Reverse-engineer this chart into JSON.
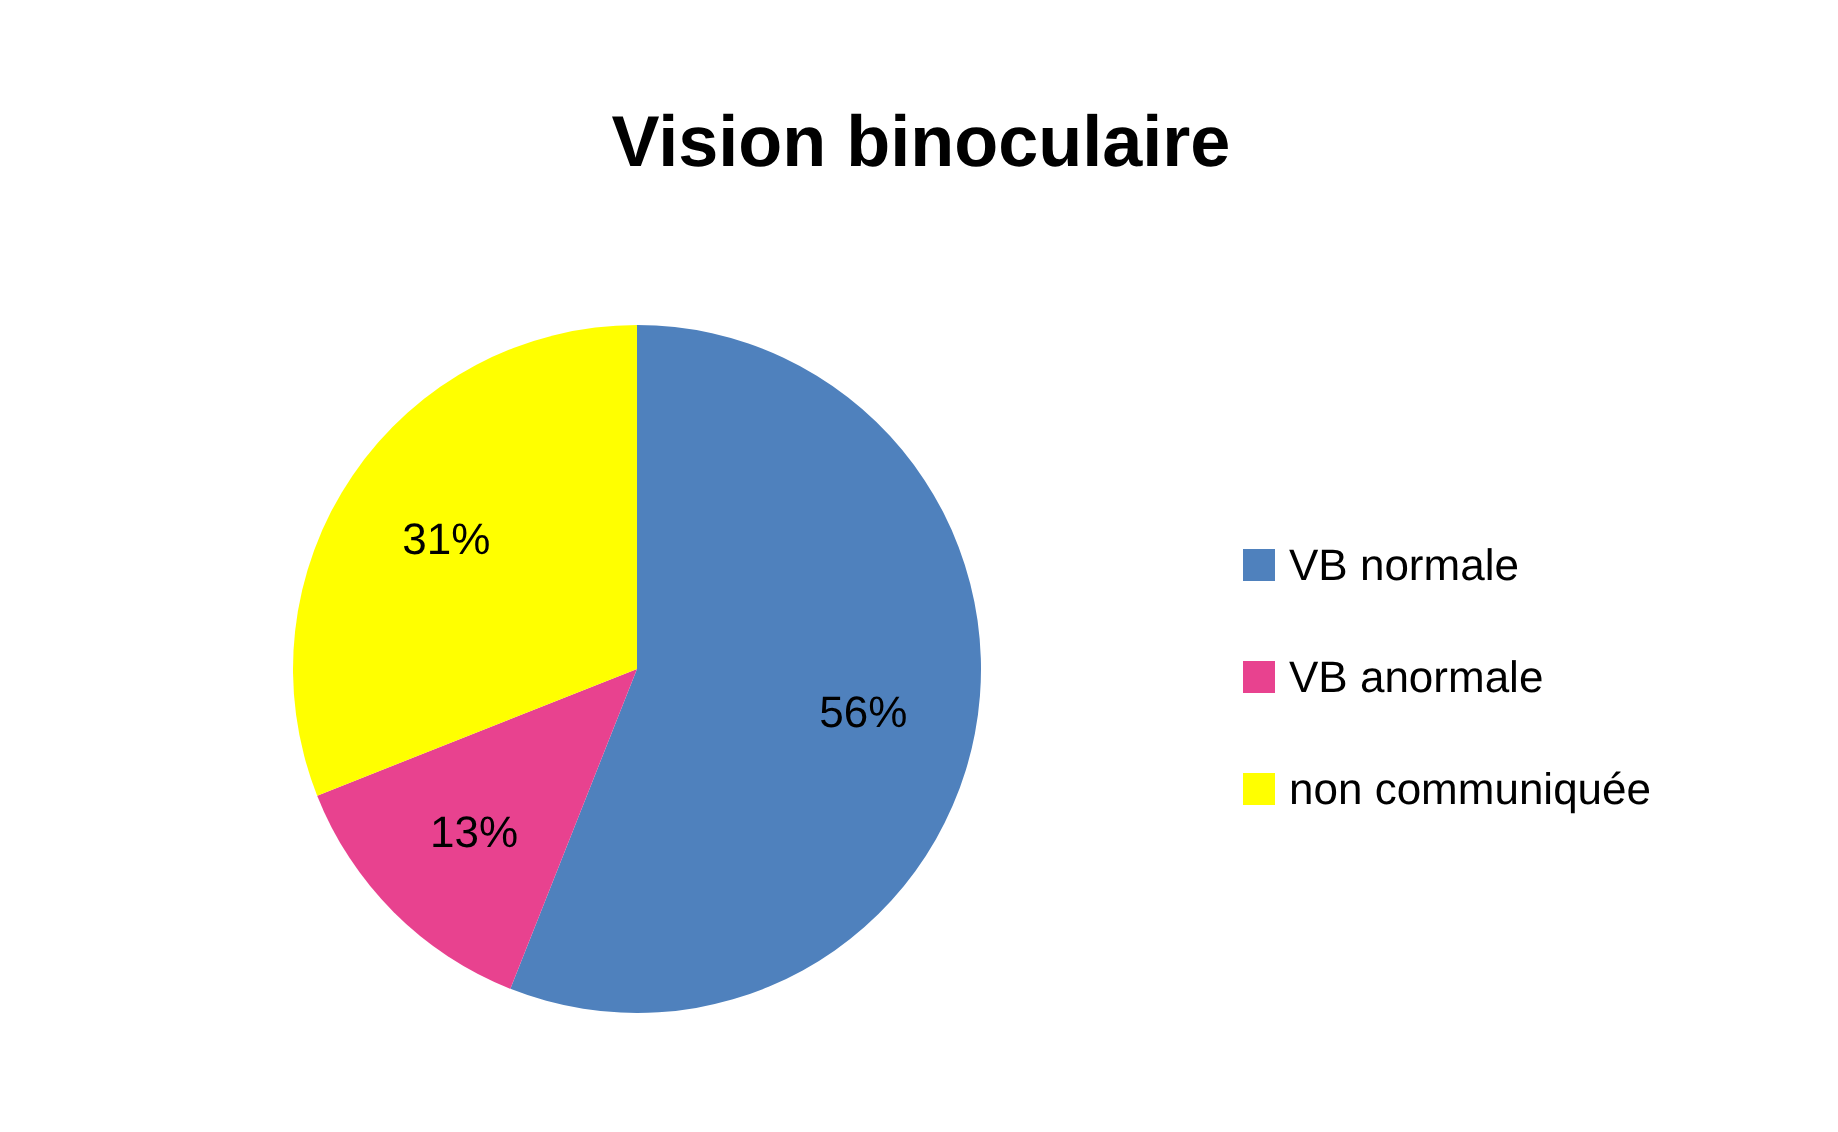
{
  "chart_data": {
    "type": "pie",
    "title": "Vision binoculaire",
    "categories": [
      "VB normale",
      "VB anormale",
      "non communiquée"
    ],
    "values": [
      56,
      13,
      31
    ],
    "colors": [
      "#4f81bd",
      "#e8428f",
      "#ffff00"
    ],
    "value_labels": [
      "56%",
      "13%",
      "31%"
    ],
    "legend": "right"
  }
}
